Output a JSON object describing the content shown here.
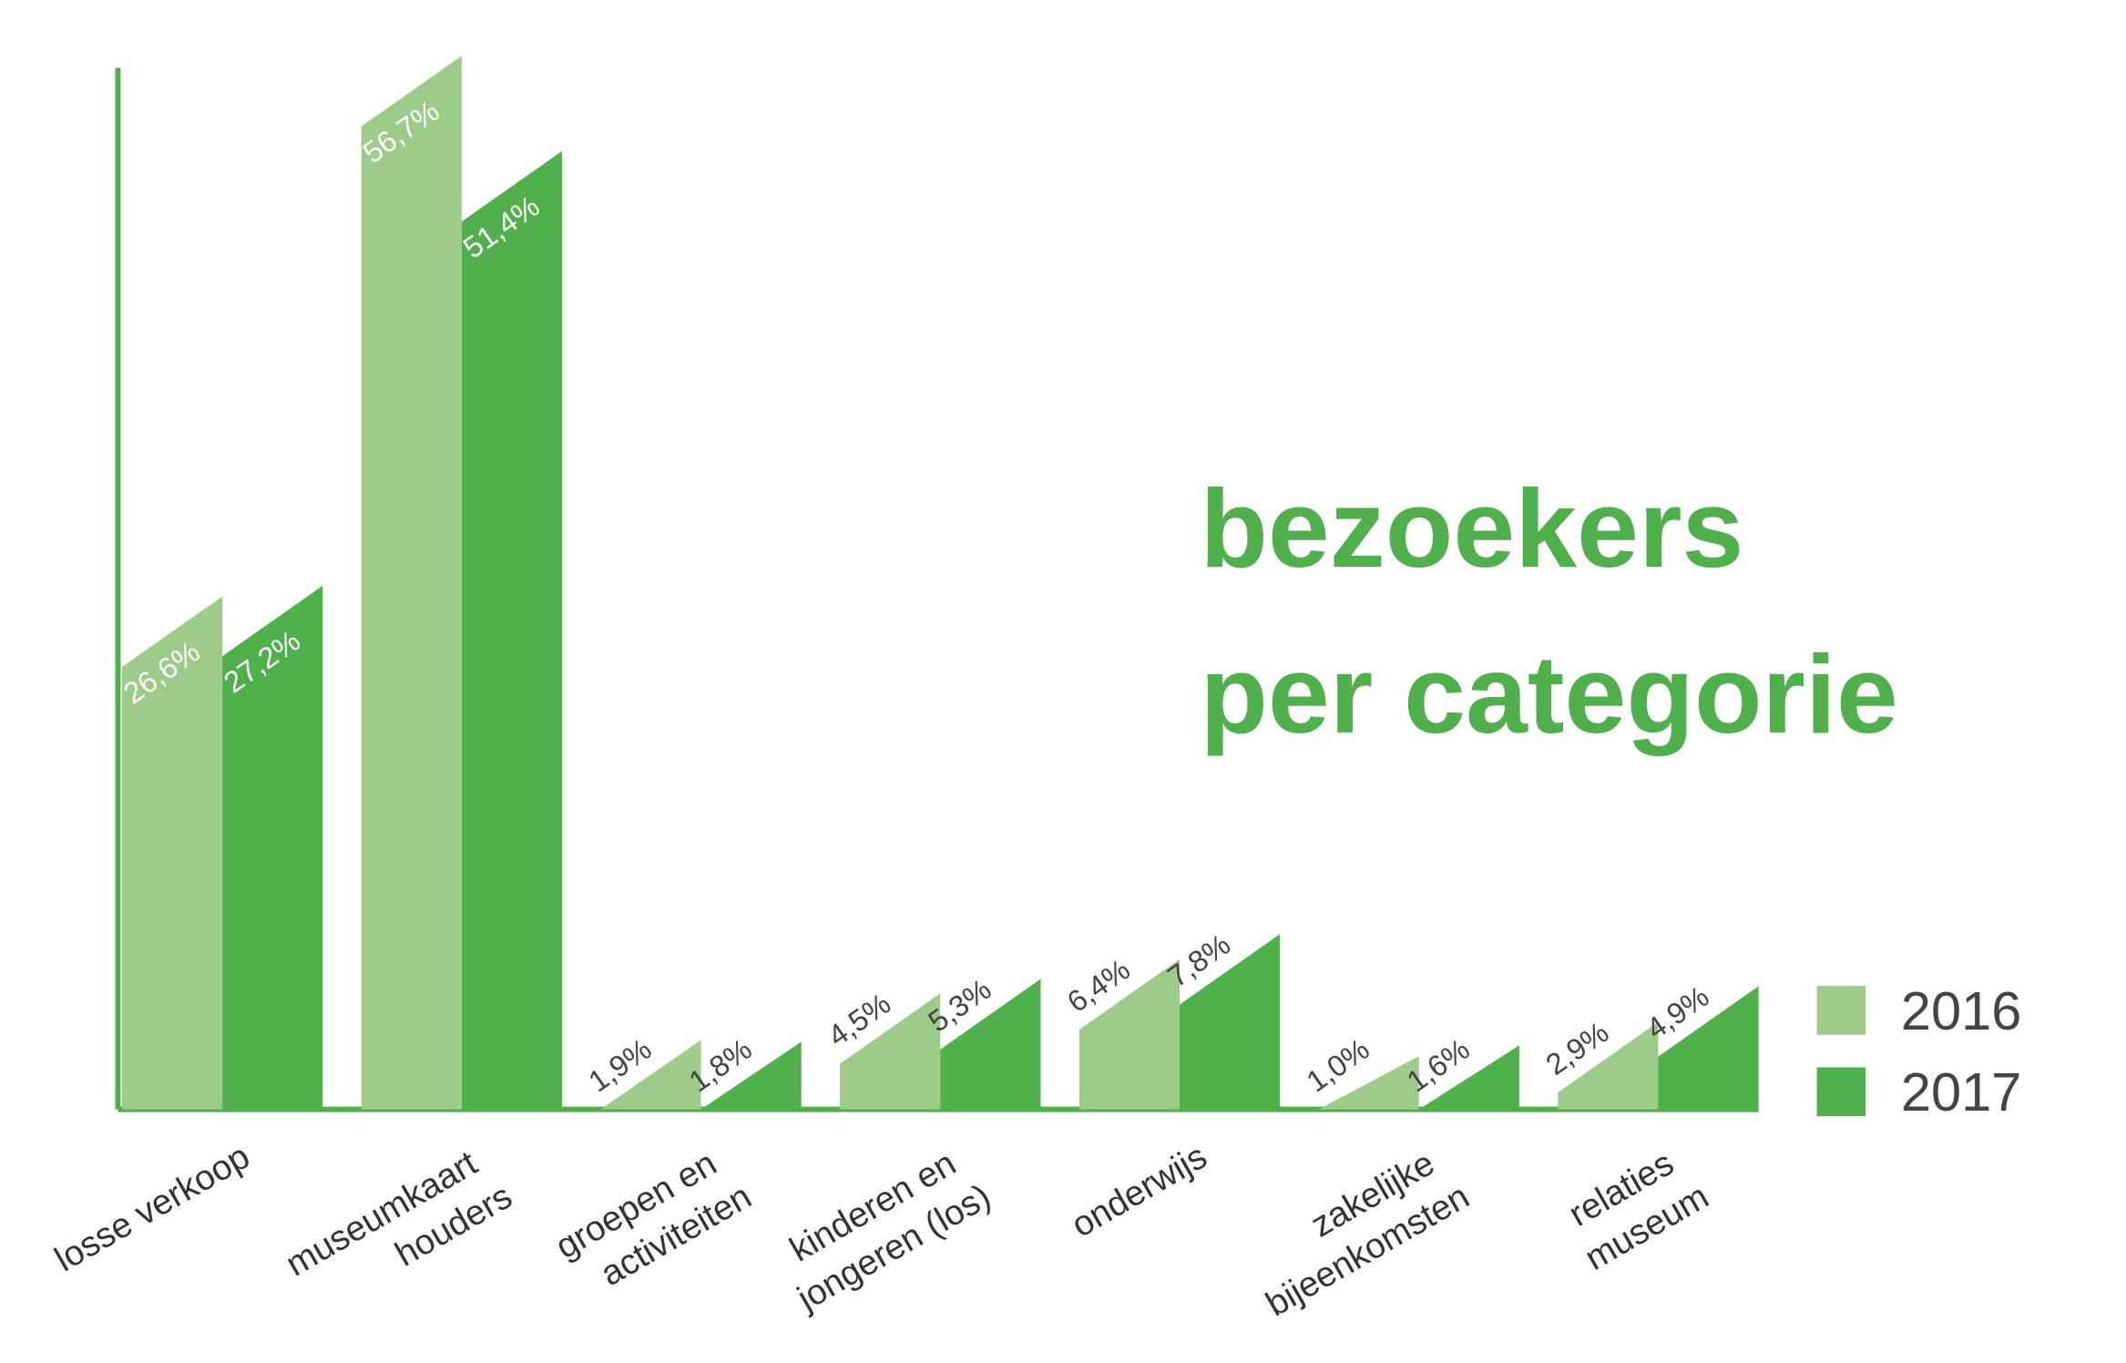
{
  "chart_data": {
    "type": "bar",
    "title": [
      "bezoekers",
      "per categorie"
    ],
    "categories": [
      [
        "losse verkoop"
      ],
      [
        "museumkaart",
        "houders"
      ],
      [
        "groepen en",
        "activiteiten"
      ],
      [
        "kinderen en",
        "jongeren (los)"
      ],
      [
        "onderwijs"
      ],
      [
        "zakelijke",
        "bijeenkomsten"
      ],
      [
        "relaties",
        "museum"
      ]
    ],
    "series": [
      {
        "name": "2016",
        "color": "#9dcb8a",
        "values": [
          26.6,
          56.7,
          1.9,
          4.5,
          6.4,
          1.0,
          2.9
        ],
        "value_labels": [
          "26,6%",
          "56,7%",
          "1,9%",
          "4,5%",
          "6,4%",
          "1,0%",
          "2,9%"
        ]
      },
      {
        "name": "2017",
        "color": "#50b04b",
        "values": [
          27.2,
          51.4,
          1.8,
          5.3,
          7.8,
          1.6,
          4.9
        ],
        "value_labels": [
          "27,2%",
          "51,4%",
          "1,8%",
          "5,3%",
          "7,8%",
          "1,6%",
          "4,9%"
        ]
      }
    ],
    "ylim": [
      0,
      58
    ],
    "axis_color": "#50b04b",
    "title_color": "#50b04b",
    "legend": "right"
  }
}
